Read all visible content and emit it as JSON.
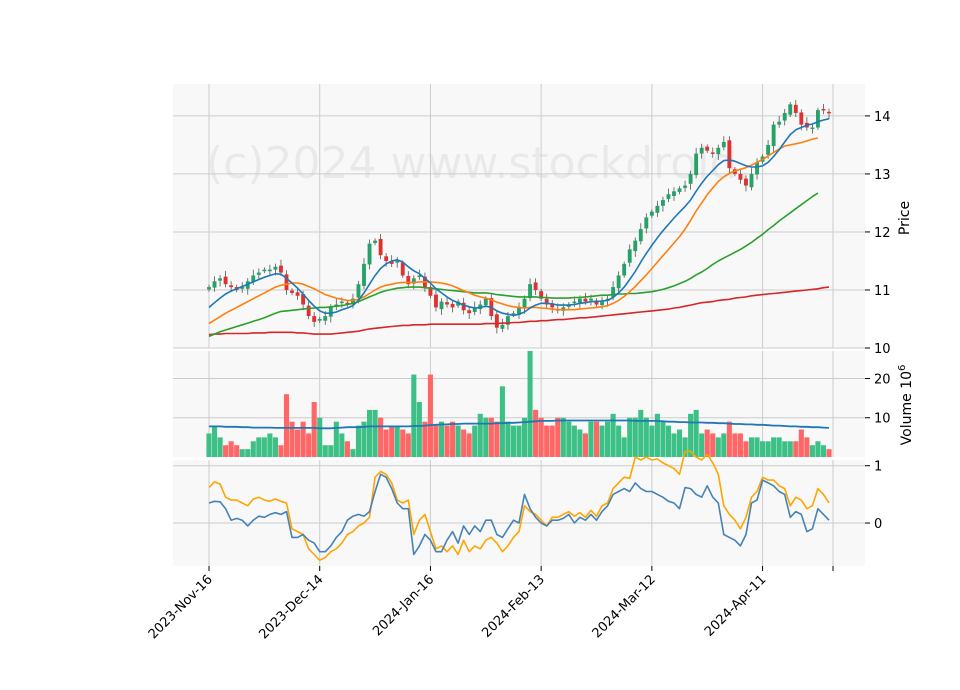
{
  "watermark": "(c)2024 www.stockdroid.",
  "chart_data": {
    "type": "candlestick",
    "colors": {
      "up": "#26a269",
      "down": "#e03131",
      "up_volume": "#3cc086",
      "down_volume": "#ff6666",
      "ma_short": "#1f77b4",
      "ma_mid": "#ff7f0e",
      "ma_long": "#2ca02c",
      "ma_longest": "#d62728",
      "volume_avg": "#1f77b4",
      "osc_main": "#4682b4",
      "osc_signal": "#ffa500",
      "panel_bg": "#f8f8f8",
      "grid": "#cccccc"
    },
    "x_ticks": [
      {
        "index": 0,
        "label": "2023-Nov-16"
      },
      {
        "index": 20,
        "label": "2023-Dec-14"
      },
      {
        "index": 40,
        "label": "2024-Jan-16"
      },
      {
        "index": 60,
        "label": "2024-Feb-13"
      },
      {
        "index": 80,
        "label": "2024-Mar-12"
      },
      {
        "index": 100,
        "label": "2024-Apr-11"
      }
    ],
    "price_panel": {
      "ylabel": "Price",
      "ylim": [
        10.0,
        14.55
      ],
      "yticks": [
        10,
        11,
        12,
        13,
        14
      ],
      "close": [
        11.05,
        11.15,
        11.2,
        11.1,
        11.05,
        11.0,
        11.05,
        11.15,
        11.25,
        11.3,
        11.35,
        11.35,
        11.4,
        11.3,
        11.0,
        10.95,
        10.9,
        10.75,
        10.55,
        10.45,
        10.5,
        10.55,
        10.7,
        10.75,
        10.8,
        10.75,
        10.85,
        11.1,
        11.45,
        11.8,
        11.85,
        11.6,
        11.5,
        11.45,
        11.5,
        11.25,
        11.1,
        11.2,
        11.25,
        11.05,
        10.9,
        10.7,
        10.8,
        10.75,
        10.7,
        10.8,
        10.65,
        10.6,
        10.7,
        10.75,
        10.85,
        10.55,
        10.35,
        10.4,
        10.55,
        10.6,
        10.7,
        10.85,
        11.1,
        11.0,
        10.85,
        10.75,
        10.7,
        10.65,
        10.7,
        10.75,
        10.8,
        10.85,
        10.8,
        10.85,
        10.75,
        10.8,
        10.85,
        11.05,
        11.25,
        11.45,
        11.7,
        11.85,
        12.05,
        12.25,
        12.35,
        12.45,
        12.55,
        12.65,
        12.7,
        12.75,
        12.8,
        13.0,
        13.35,
        13.45,
        13.4,
        13.35,
        13.45,
        13.55,
        13.1,
        13.0,
        12.9,
        12.8,
        13.0,
        13.2,
        13.3,
        13.5,
        13.85,
        13.9,
        14.05,
        14.2,
        14.05,
        13.85,
        13.8,
        13.8,
        14.1,
        14.1,
        14.05
      ],
      "ma_short": [
        10.7,
        10.78,
        10.86,
        10.93,
        10.98,
        11.02,
        11.06,
        11.1,
        11.14,
        11.18,
        11.22,
        11.25,
        11.28,
        11.27,
        11.2,
        11.12,
        11.03,
        10.93,
        10.82,
        10.72,
        10.64,
        10.6,
        10.6,
        10.62,
        10.66,
        10.69,
        10.73,
        10.82,
        10.95,
        11.1,
        11.25,
        11.37,
        11.45,
        11.5,
        11.52,
        11.48,
        11.4,
        11.33,
        11.28,
        11.2,
        11.12,
        11.02,
        10.95,
        10.88,
        10.82,
        10.78,
        10.74,
        10.71,
        10.69,
        10.7,
        10.72,
        10.7,
        10.64,
        10.6,
        10.58,
        10.56,
        10.58,
        10.62,
        10.69,
        10.74,
        10.77,
        10.77,
        10.76,
        10.74,
        10.74,
        10.74,
        10.75,
        10.77,
        10.78,
        10.8,
        10.8,
        10.81,
        10.82,
        10.87,
        10.95,
        11.05,
        11.18,
        11.32,
        11.48,
        11.63,
        11.77,
        11.9,
        12.02,
        12.13,
        12.24,
        12.34,
        12.44,
        12.55,
        12.7,
        12.84,
        12.96,
        13.06,
        13.16,
        13.23,
        13.24,
        13.22,
        13.18,
        13.14,
        13.12,
        13.12,
        13.14,
        13.2,
        13.3,
        13.42,
        13.55,
        13.68,
        13.76,
        13.8,
        13.84,
        13.86,
        13.9,
        13.93,
        13.95
      ],
      "ma_mid": [
        10.42,
        10.48,
        10.54,
        10.6,
        10.65,
        10.7,
        10.75,
        10.8,
        10.85,
        10.9,
        10.95,
        11.0,
        11.05,
        11.08,
        11.1,
        11.12,
        11.12,
        11.1,
        11.06,
        11.02,
        10.97,
        10.92,
        10.89,
        10.86,
        10.84,
        10.82,
        10.82,
        10.84,
        10.88,
        10.94,
        11.0,
        11.05,
        11.08,
        11.1,
        11.12,
        11.13,
        11.13,
        11.13,
        11.14,
        11.14,
        11.14,
        11.13,
        11.12,
        11.1,
        11.07,
        11.03,
        10.99,
        10.95,
        10.91,
        10.88,
        10.86,
        10.83,
        10.79,
        10.76,
        10.73,
        10.71,
        10.7,
        10.69,
        10.7,
        10.7,
        10.69,
        10.68,
        10.67,
        10.66,
        10.66,
        10.66,
        10.66,
        10.67,
        10.68,
        10.69,
        10.7,
        10.71,
        10.73,
        10.77,
        10.82,
        10.89,
        10.97,
        11.06,
        11.16,
        11.26,
        11.37,
        11.48,
        11.59,
        11.7,
        11.81,
        11.92,
        12.05,
        12.2,
        12.36,
        12.5,
        12.64,
        12.76,
        12.87,
        12.95,
        13.01,
        13.05,
        13.08,
        13.11,
        13.15,
        13.2,
        13.25,
        13.31,
        13.37,
        13.43,
        13.48,
        13.5,
        13.52,
        13.54,
        13.57,
        13.6,
        13.62
      ],
      "ma_long": [
        10.2,
        10.24,
        10.28,
        10.31,
        10.34,
        10.37,
        10.4,
        10.43,
        10.46,
        10.49,
        10.52,
        10.56,
        10.6,
        10.63,
        10.64,
        10.65,
        10.66,
        10.67,
        10.68,
        10.69,
        10.7,
        10.7,
        10.71,
        10.72,
        10.73,
        10.75,
        10.77,
        10.8,
        10.84,
        10.88,
        10.92,
        10.96,
        10.99,
        11.01,
        11.03,
        11.04,
        11.05,
        11.05,
        11.05,
        11.04,
        11.03,
        11.02,
        11.01,
        11.0,
        10.99,
        10.98,
        10.97,
        10.96,
        10.95,
        10.95,
        10.95,
        10.94,
        10.92,
        10.91,
        10.9,
        10.89,
        10.88,
        10.88,
        10.88,
        10.88,
        10.87,
        10.87,
        10.86,
        10.86,
        10.86,
        10.86,
        10.87,
        10.87,
        10.88,
        10.89,
        10.9,
        10.91,
        10.91,
        10.92,
        10.93,
        10.93,
        10.94,
        10.94,
        10.95,
        10.96,
        10.97,
        10.99,
        11.01,
        11.04,
        11.07,
        11.11,
        11.15,
        11.2,
        11.26,
        11.31,
        11.37,
        11.44,
        11.5,
        11.55,
        11.6,
        11.65,
        11.7,
        11.76,
        11.82,
        11.89,
        11.96,
        12.04,
        12.11,
        12.19,
        12.26,
        12.33,
        12.4,
        12.47,
        12.54,
        12.61,
        12.67
      ],
      "ma_longest": [
        10.23,
        10.24,
        10.24,
        10.25,
        10.25,
        10.25,
        10.25,
        10.25,
        10.26,
        10.26,
        10.26,
        10.27,
        10.27,
        10.27,
        10.27,
        10.27,
        10.26,
        10.26,
        10.25,
        10.24,
        10.24,
        10.24,
        10.24,
        10.25,
        10.26,
        10.27,
        10.28,
        10.29,
        10.31,
        10.33,
        10.34,
        10.35,
        10.36,
        10.37,
        10.38,
        10.39,
        10.39,
        10.4,
        10.4,
        10.4,
        10.41,
        10.41,
        10.41,
        10.41,
        10.41,
        10.41,
        10.41,
        10.41,
        10.41,
        10.41,
        10.42,
        10.42,
        10.42,
        10.43,
        10.43,
        10.44,
        10.44,
        10.45,
        10.46,
        10.46,
        10.47,
        10.47,
        10.48,
        10.49,
        10.49,
        10.5,
        10.51,
        10.52,
        10.52,
        10.53,
        10.54,
        10.55,
        10.56,
        10.57,
        10.58,
        10.59,
        10.6,
        10.61,
        10.62,
        10.63,
        10.64,
        10.65,
        10.66,
        10.67,
        10.69,
        10.7,
        10.72,
        10.74,
        10.76,
        10.78,
        10.79,
        10.8,
        10.82,
        10.83,
        10.84,
        10.86,
        10.87,
        10.88,
        10.9,
        10.91,
        10.92,
        10.93,
        10.94,
        10.95,
        10.96,
        10.97,
        10.98,
        10.99,
        11.0,
        11.01,
        11.02,
        11.04,
        11.05
      ]
    },
    "volume_panel": {
      "ylabel": "Volume  10^6",
      "ylim": [
        0,
        27
      ],
      "yticks": [
        10,
        20
      ],
      "volume": [
        6,
        8,
        5,
        3,
        4,
        3,
        2,
        2,
        4,
        5,
        5,
        6,
        5,
        3,
        16,
        9,
        7,
        9,
        6,
        14,
        10,
        3,
        3,
        9,
        6,
        4,
        2,
        8,
        9,
        12,
        12,
        10,
        7,
        8,
        8,
        7,
        6,
        21,
        14,
        9,
        21,
        8,
        9,
        8,
        9,
        8,
        7,
        6,
        8,
        11,
        10,
        10,
        9,
        18,
        9,
        8,
        8,
        10,
        27,
        12,
        10,
        8,
        8,
        10,
        10,
        9,
        8,
        7,
        6,
        9,
        9,
        8,
        9,
        11,
        8,
        5,
        10,
        10,
        12,
        10,
        8,
        11,
        9,
        8,
        6,
        7,
        5,
        11,
        12,
        6,
        7,
        6,
        5,
        6,
        9,
        6,
        6,
        4,
        5,
        5,
        4,
        4,
        5,
        5,
        4,
        4,
        4,
        7,
        5,
        3,
        4,
        3,
        2
      ],
      "volume_avg": [
        7.8,
        7.8,
        7.8,
        7.7,
        7.7,
        7.7,
        7.6,
        7.6,
        7.5,
        7.5,
        7.5,
        7.5,
        7.4,
        7.4,
        7.4,
        7.4,
        7.4,
        7.4,
        7.4,
        7.4,
        7.3,
        7.3,
        7.3,
        7.4,
        7.5,
        7.6,
        7.6,
        7.6,
        7.7,
        7.8,
        7.8,
        7.8,
        7.8,
        7.8,
        7.8,
        7.8,
        7.8,
        7.9,
        7.9,
        8.0,
        8.1,
        8.2,
        8.3,
        8.3,
        8.4,
        8.4,
        8.5,
        8.5,
        8.5,
        8.5,
        8.5,
        8.5,
        8.6,
        8.6,
        8.7,
        8.7,
        8.8,
        8.9,
        9.0,
        9.1,
        9.2,
        9.2,
        9.2,
        9.3,
        9.3,
        9.3,
        9.3,
        9.3,
        9.3,
        9.3,
        9.3,
        9.3,
        9.3,
        9.3,
        9.3,
        9.3,
        9.3,
        9.2,
        9.2,
        9.2,
        9.2,
        9.2,
        9.1,
        9.0,
        9.0,
        8.9,
        8.9,
        8.8,
        8.8,
        8.8,
        8.7,
        8.7,
        8.6,
        8.6,
        8.5,
        8.4,
        8.4,
        8.3,
        8.3,
        8.2,
        8.2,
        8.1,
        8.0,
        8.0,
        7.9,
        7.8,
        7.8,
        7.7,
        7.7,
        7.6,
        7.6,
        7.5,
        7.4
      ]
    },
    "oscillator_panel": {
      "ylim": [
        -0.75,
        1.1
      ],
      "yticks": [
        0,
        1
      ],
      "main": [
        0.35,
        0.38,
        0.37,
        0.25,
        0.05,
        0.08,
        0.05,
        -0.05,
        0.05,
        0.12,
        0.1,
        0.15,
        0.18,
        0.15,
        0.2,
        -0.25,
        -0.25,
        -0.2,
        -0.3,
        -0.35,
        -0.5,
        -0.5,
        -0.4,
        -0.25,
        -0.15,
        0.05,
        0.12,
        0.15,
        0.12,
        0.2,
        0.55,
        0.85,
        0.8,
        0.6,
        0.35,
        0.25,
        0.25,
        -0.55,
        -0.4,
        -0.2,
        -0.3,
        -0.5,
        -0.5,
        -0.3,
        -0.15,
        -0.35,
        -0.05,
        -0.2,
        -0.05,
        -0.15,
        0.05,
        0.05,
        -0.2,
        -0.25,
        -0.1,
        0.05,
        0.0,
        0.5,
        0.25,
        0.1,
        0.0,
        -0.05,
        0.05,
        0.05,
        0.08,
        0.15,
        0.0,
        0.1,
        0.05,
        0.15,
        0.05,
        0.2,
        0.3,
        0.5,
        0.55,
        0.6,
        0.55,
        0.7,
        0.6,
        0.55,
        0.55,
        0.5,
        0.45,
        0.38,
        0.35,
        0.25,
        0.62,
        0.6,
        0.5,
        0.45,
        0.65,
        0.45,
        0.35,
        -0.2,
        -0.25,
        -0.3,
        -0.4,
        -0.2,
        0.35,
        0.4,
        0.75,
        0.7,
        0.65,
        0.55,
        0.5,
        0.1,
        0.2,
        0.15,
        -0.15,
        -0.1,
        0.25,
        0.15,
        0.05
      ],
      "signal": [
        0.62,
        0.72,
        0.68,
        0.45,
        0.4,
        0.4,
        0.35,
        0.3,
        0.42,
        0.45,
        0.4,
        0.38,
        0.42,
        0.38,
        0.35,
        -0.1,
        -0.15,
        -0.2,
        -0.45,
        -0.55,
        -0.65,
        -0.6,
        -0.5,
        -0.45,
        -0.35,
        -0.2,
        -0.15,
        -0.05,
        0.0,
        0.1,
        0.8,
        0.9,
        0.85,
        0.7,
        0.4,
        0.35,
        0.4,
        -0.2,
        0.05,
        0.15,
        -0.15,
        -0.45,
        -0.4,
        -0.5,
        -0.4,
        -0.55,
        -0.3,
        -0.5,
        -0.4,
        -0.45,
        -0.3,
        -0.25,
        -0.35,
        -0.5,
        -0.4,
        -0.25,
        -0.15,
        0.3,
        0.2,
        0.15,
        0.05,
        -0.05,
        0.1,
        0.1,
        0.15,
        0.2,
        0.12,
        0.18,
        0.1,
        0.22,
        0.12,
        0.3,
        0.35,
        0.6,
        0.7,
        0.8,
        0.78,
        1.15,
        1.1,
        1.15,
        1.1,
        1.12,
        1.05,
        1.0,
        0.95,
        0.85,
        1.25,
        1.25,
        1.15,
        1.1,
        1.2,
        1.05,
        0.85,
        0.3,
        0.15,
        0.05,
        -0.1,
        0.1,
        0.45,
        0.55,
        0.8,
        0.75,
        0.75,
        0.65,
        0.6,
        0.3,
        0.45,
        0.4,
        0.25,
        0.3,
        0.6,
        0.5,
        0.35
      ]
    }
  }
}
